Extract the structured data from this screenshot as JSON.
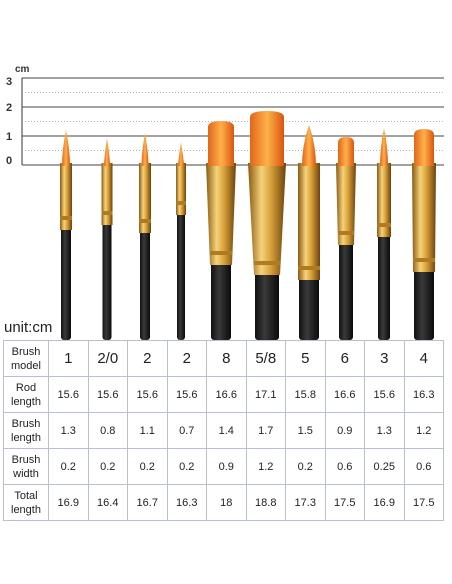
{
  "ruler": {
    "unit": "cm",
    "labels": [
      "3",
      "2",
      "1",
      "0"
    ]
  },
  "table": {
    "unit": "unit:cm",
    "rows": [
      [
        "Brush model",
        "1",
        "2/0",
        "2",
        "2",
        "8",
        "5/8",
        "5",
        "6",
        "3",
        "4"
      ],
      [
        "Rod length",
        "15.6",
        "15.6",
        "15.6",
        "15.6",
        "16.6",
        "17.1",
        "15.8",
        "16.6",
        "15.6",
        "16.3"
      ],
      [
        "Brush length",
        "1.3",
        "0.8",
        "1.1",
        "0.7",
        "1.4",
        "1.7",
        "1.5",
        "0.9",
        "1.3",
        "1.2"
      ],
      [
        "Brush width",
        "0.2",
        "0.2",
        "0.2",
        "0.2",
        "0.9",
        "1.2",
        "0.2",
        "0.6",
        "0.25",
        "0.6"
      ],
      [
        "Total length",
        "16.9",
        "16.4",
        "16.7",
        "16.3",
        "18",
        "18.8",
        "17.3",
        "17.5",
        "16.9",
        "17.5"
      ]
    ]
  }
}
